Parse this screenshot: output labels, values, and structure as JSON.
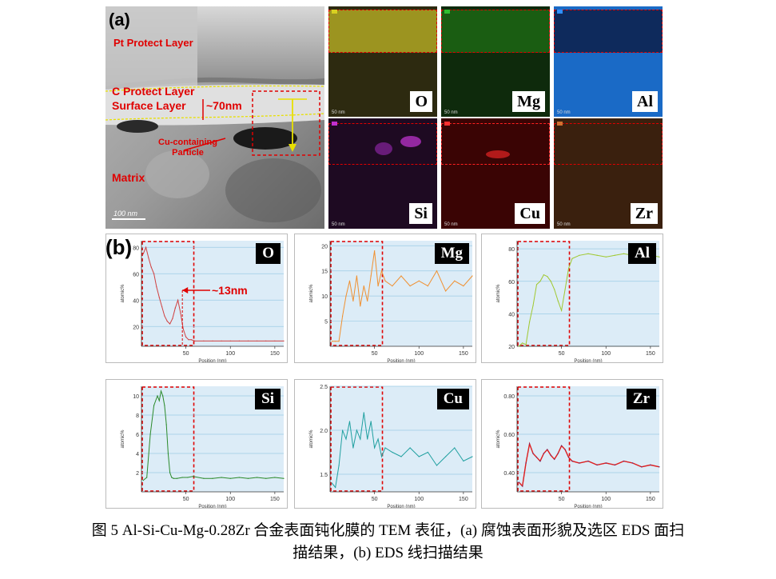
{
  "panel_a": {
    "label": "(a)",
    "tem": {
      "pt_layer": "Pt Protect Layer",
      "c_layer": "C Protect Layer",
      "surface_layer": "Surface Layer",
      "thickness": "~70nm",
      "particle": "Cu-containing\nParticle",
      "matrix": "Matrix",
      "scale_bar": "100 nm"
    },
    "maps": [
      {
        "element": "O",
        "scale": "50 nm",
        "color": "#b8b020"
      },
      {
        "element": "Mg",
        "scale": "50 nm",
        "color": "#2f8a1f"
      },
      {
        "element": "Al",
        "scale": "50 nm",
        "color": "#1e6fc8"
      },
      {
        "element": "Si",
        "scale": "50 nm",
        "color": "#9a2ca0"
      },
      {
        "element": "Cu",
        "scale": "50 nm",
        "color": "#c01818"
      },
      {
        "element": "Zr",
        "scale": "50 nm",
        "color": "#8a4a20"
      }
    ]
  },
  "panel_b": {
    "label": "(b)",
    "annotation": "~13nm",
    "plots": [
      {
        "element": "O",
        "ylabel": "atomic%",
        "xlabel": "Position (nm)",
        "yticks": [
          "20",
          "40",
          "60",
          "80"
        ],
        "xticks": [
          "50",
          "100",
          "150"
        ]
      },
      {
        "element": "Mg",
        "ylabel": "atomic%",
        "xlabel": "Position (nm)",
        "yticks": [
          "5",
          "10",
          "15",
          "20"
        ],
        "xticks": [
          "50",
          "100",
          "150"
        ]
      },
      {
        "element": "Al",
        "ylabel": "atomic%",
        "xlabel": "Position (nm)",
        "yticks": [
          "20",
          "40",
          "60",
          "80"
        ],
        "xticks": [
          "50",
          "100",
          "150"
        ]
      },
      {
        "element": "Si",
        "ylabel": "atomic%",
        "xlabel": "Position (nm)",
        "yticks": [
          "2",
          "4",
          "6",
          "8",
          "10"
        ],
        "xticks": [
          "50",
          "100",
          "150"
        ]
      },
      {
        "element": "Cu",
        "ylabel": "atomic%",
        "xlabel": "Position (nm)",
        "yticks": [
          "1.5",
          "2.0",
          "2.5"
        ],
        "xticks": [
          "50",
          "100",
          "150"
        ]
      },
      {
        "element": "Zr",
        "ylabel": "atomic%",
        "xlabel": "Position (nm)",
        "yticks": [
          "0.40",
          "0.60",
          "0.80"
        ],
        "xticks": [
          "50",
          "100",
          "150"
        ]
      }
    ]
  },
  "chart_data": [
    {
      "type": "line",
      "element": "O",
      "colors": [
        "#d04040"
      ],
      "xlim": [
        0,
        160
      ],
      "ylim": [
        5,
        85
      ],
      "x": [
        2,
        5,
        8,
        11,
        14,
        17,
        20,
        23,
        26,
        29,
        32,
        35,
        38,
        41,
        44,
        47,
        50,
        53,
        56,
        60,
        70,
        80,
        90,
        100,
        110,
        120,
        130,
        140,
        150,
        160
      ],
      "y": [
        75,
        80,
        72,
        65,
        60,
        50,
        42,
        35,
        28,
        24,
        22,
        26,
        34,
        40,
        30,
        18,
        12,
        10,
        10,
        9,
        9,
        9,
        9,
        9,
        9,
        9,
        9,
        9,
        9,
        9
      ]
    },
    {
      "type": "line",
      "element": "Mg",
      "colors": [
        "#f09030"
      ],
      "xlim": [
        0,
        160
      ],
      "ylim": [
        0,
        21
      ],
      "x": [
        2,
        6,
        10,
        14,
        18,
        22,
        26,
        30,
        34,
        38,
        42,
        46,
        50,
        54,
        58,
        62,
        70,
        80,
        90,
        100,
        110,
        120,
        130,
        140,
        150,
        160
      ],
      "y": [
        1,
        1,
        1,
        6,
        10,
        13,
        9,
        14,
        8,
        12,
        9,
        14,
        19,
        12,
        15,
        13,
        12,
        14,
        12,
        13,
        12,
        15,
        11,
        13,
        12,
        14
      ]
    },
    {
      "type": "line",
      "element": "Al",
      "colors": [
        "#a0c830"
      ],
      "xlim": [
        0,
        160
      ],
      "ylim": [
        20,
        85
      ],
      "x": [
        2,
        6,
        10,
        14,
        18,
        22,
        26,
        30,
        34,
        38,
        42,
        46,
        50,
        54,
        58,
        62,
        70,
        80,
        90,
        100,
        110,
        120,
        130,
        140,
        150,
        160
      ],
      "y": [
        20,
        22,
        21,
        35,
        45,
        58,
        60,
        64,
        63,
        60,
        55,
        48,
        42,
        55,
        68,
        74,
        76,
        77,
        76,
        75,
        76,
        77,
        76,
        75,
        76,
        75
      ]
    },
    {
      "type": "line",
      "element": "Si",
      "colors": [
        "#2a8a2a"
      ],
      "xlim": [
        0,
        160
      ],
      "ylim": [
        0,
        11
      ],
      "x": [
        2,
        6,
        10,
        14,
        18,
        20,
        22,
        24,
        26,
        28,
        30,
        32,
        34,
        36,
        40,
        46,
        52,
        58,
        70,
        80,
        90,
        100,
        110,
        120,
        130,
        140,
        150,
        160
      ],
      "y": [
        1.2,
        1.5,
        6,
        9,
        10,
        9.5,
        10.5,
        10,
        9,
        7,
        4,
        2,
        1.5,
        1.4,
        1.4,
        1.5,
        1.5,
        1.6,
        1.4,
        1.4,
        1.5,
        1.4,
        1.5,
        1.4,
        1.5,
        1.4,
        1.5,
        1.4
      ]
    },
    {
      "type": "line",
      "element": "Cu",
      "colors": [
        "#20a0a0"
      ],
      "xlim": [
        0,
        160
      ],
      "ylim": [
        1.3,
        2.5
      ],
      "x": [
        2,
        6,
        10,
        14,
        18,
        22,
        26,
        30,
        34,
        38,
        42,
        46,
        50,
        54,
        58,
        62,
        70,
        80,
        90,
        100,
        110,
        120,
        130,
        140,
        150,
        160
      ],
      "y": [
        1.4,
        1.35,
        1.6,
        2.0,
        1.9,
        2.1,
        1.8,
        2.0,
        1.9,
        2.2,
        1.9,
        2.1,
        1.8,
        1.9,
        1.7,
        1.8,
        1.75,
        1.7,
        1.8,
        1.7,
        1.75,
        1.6,
        1.7,
        1.8,
        1.65,
        1.7
      ]
    },
    {
      "type": "line",
      "element": "Zr",
      "colors": [
        "#303090",
        "#e02020"
      ],
      "xlim": [
        0,
        160
      ],
      "ylim": [
        0.3,
        0.85
      ],
      "x": [
        2,
        6,
        10,
        14,
        18,
        22,
        26,
        30,
        34,
        38,
        42,
        46,
        50,
        54,
        58,
        62,
        70,
        80,
        90,
        100,
        110,
        120,
        130,
        140,
        150,
        160
      ],
      "y": [
        0.35,
        0.33,
        0.45,
        0.55,
        0.5,
        0.48,
        0.46,
        0.5,
        0.52,
        0.49,
        0.47,
        0.5,
        0.54,
        0.52,
        0.48,
        0.46,
        0.45,
        0.46,
        0.44,
        0.45,
        0.44,
        0.46,
        0.45,
        0.43,
        0.44,
        0.43
      ]
    }
  ],
  "caption": {
    "line1": "图 5 Al-Si-Cu-Mg-0.28Zr 合金表面钝化膜的 TEM 表征，(a)  腐蚀表面形貌及选区 EDS 面扫",
    "line2": "描结果，(b) EDS 线扫描结果"
  }
}
